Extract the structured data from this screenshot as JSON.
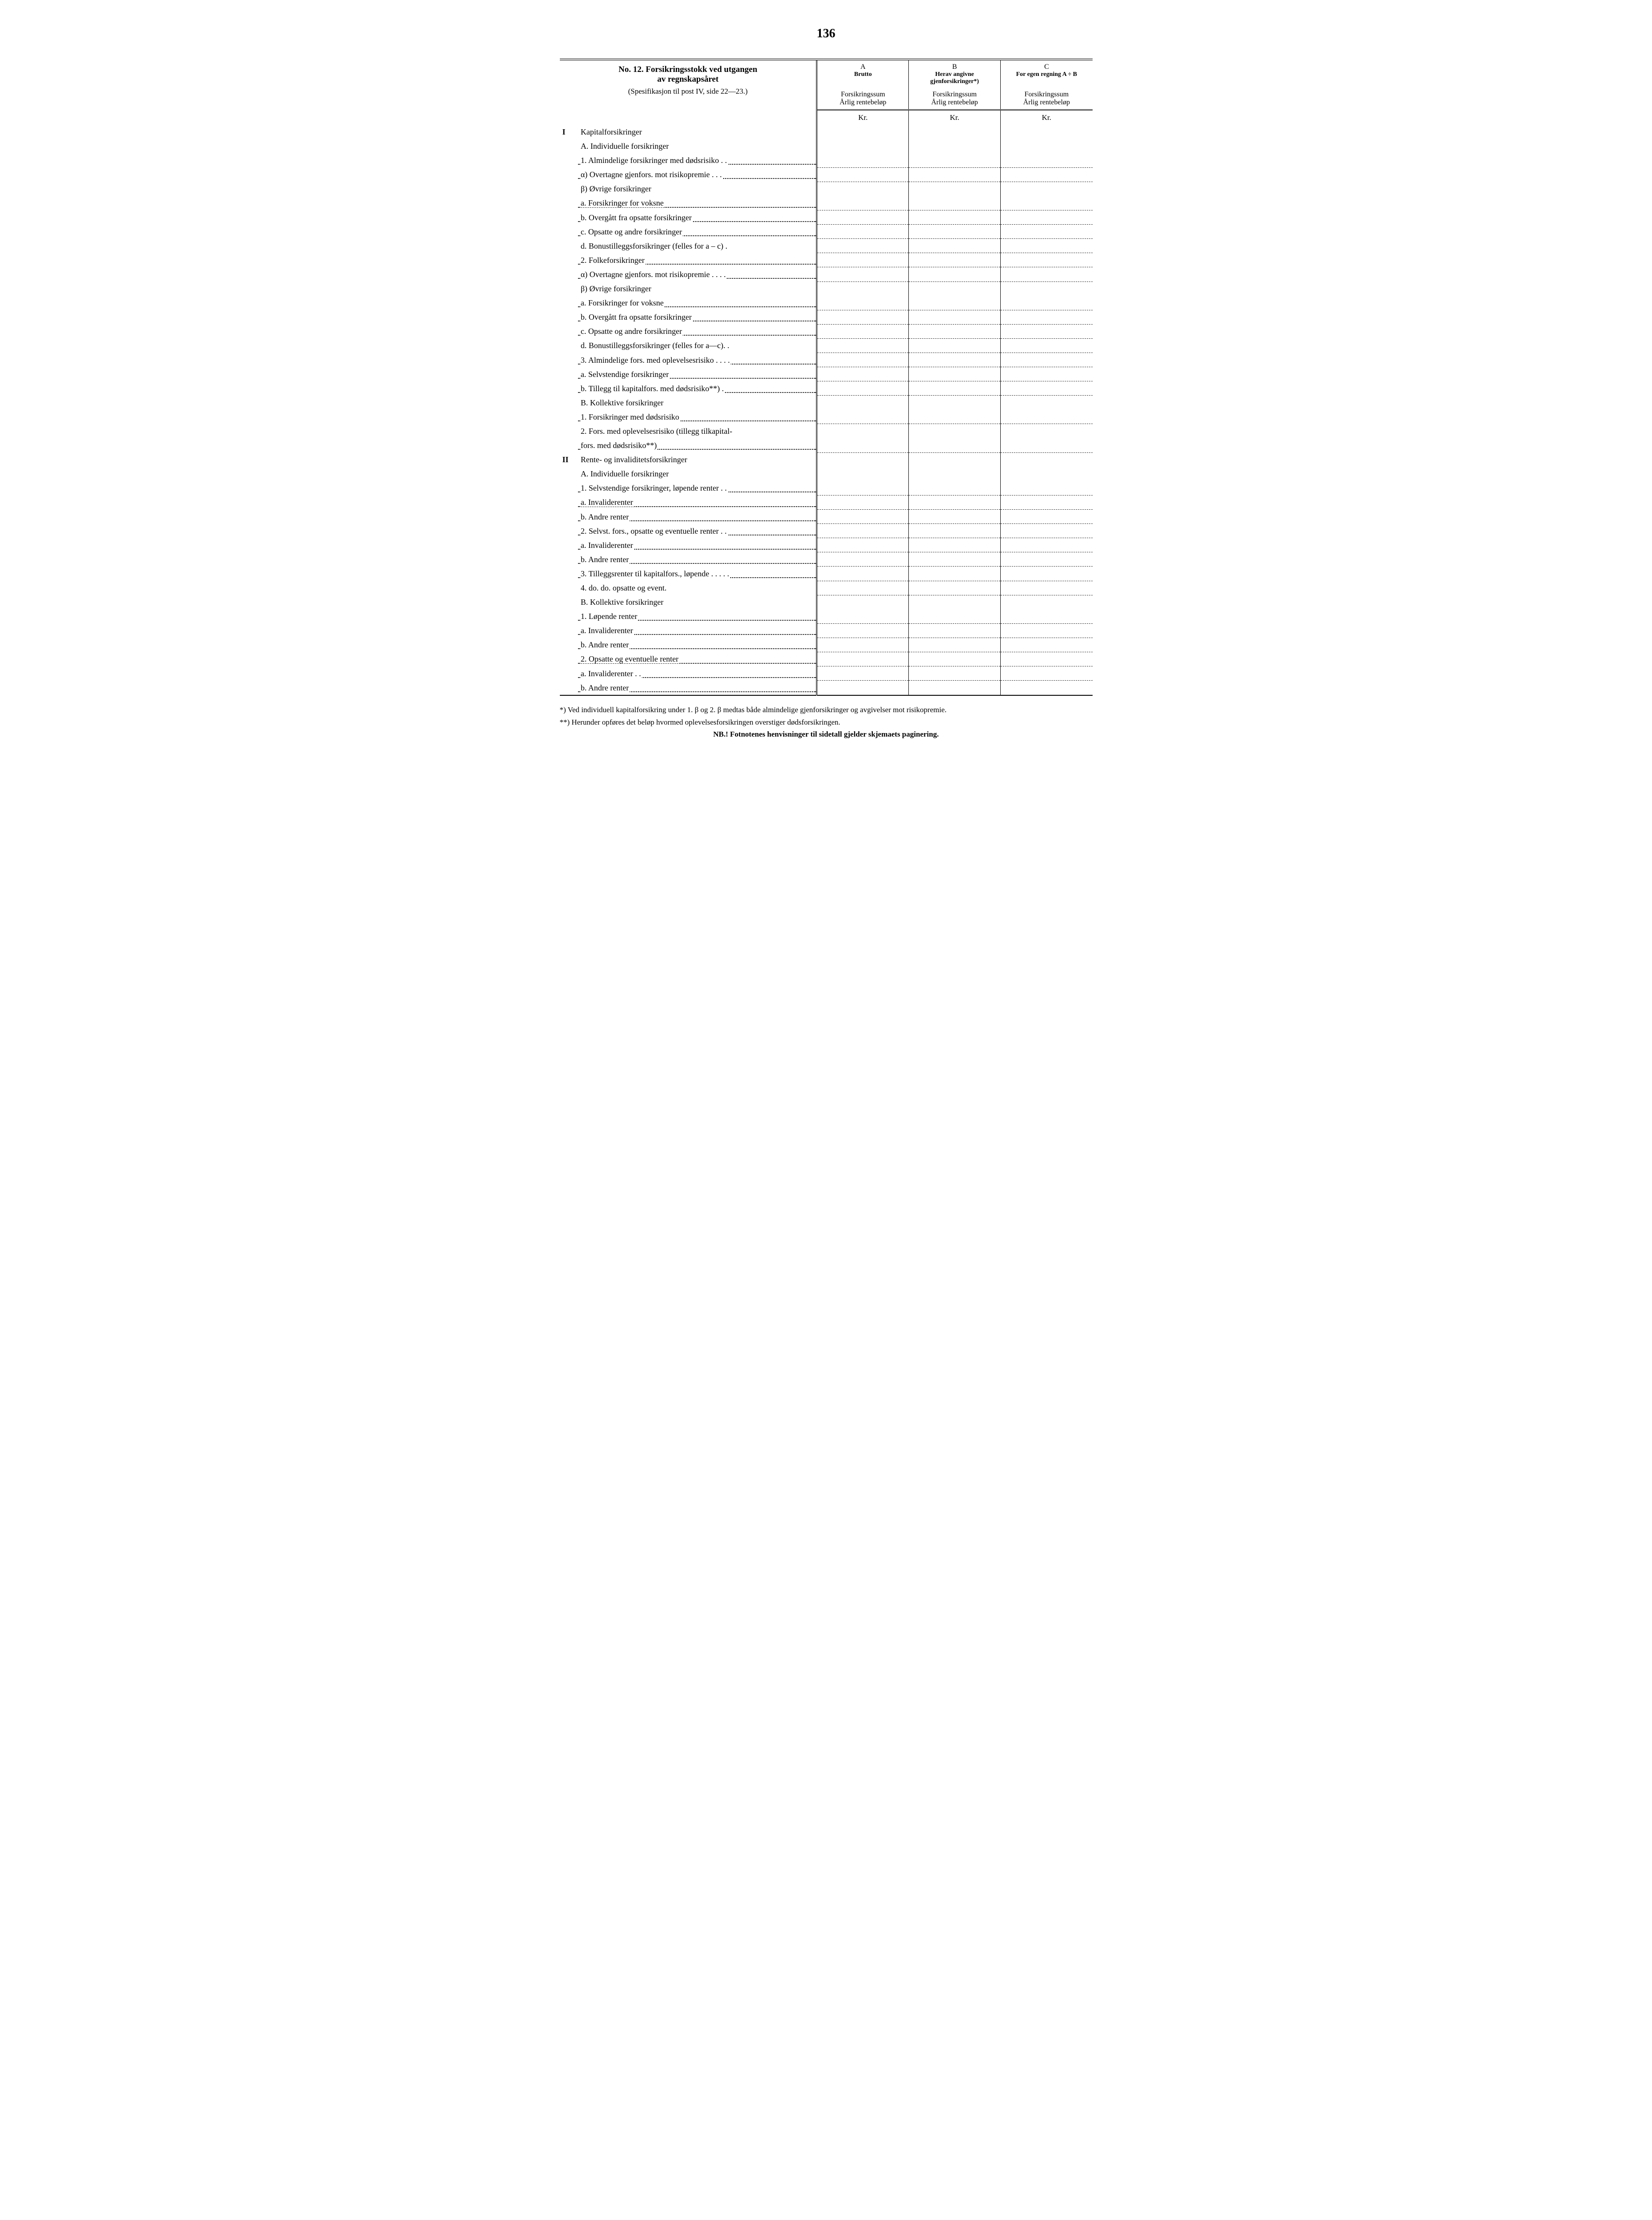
{
  "page_number": "136",
  "header": {
    "title_line1": "No. 12.  Forsikringsstokk ved utgangen",
    "title_line2": "av regnskapsåret",
    "subtitle": "(Spesifikasjon til post IV, side 22—23.)",
    "colA_letter": "A",
    "colA_label": "Brutto",
    "colB_letter": "B",
    "colB_label": "Herav angivne gjenforsikringer*)",
    "colC_letter": "C",
    "colC_label": "For egen regning A ÷ B",
    "sub_line1": "Forsikringssum",
    "sub_line2": "Årlig rentebeløp",
    "kr": "Kr."
  },
  "rows": [
    {
      "roman": "I",
      "indent": 0,
      "text": "Kapitalforsikringer",
      "leader": false,
      "dash": false
    },
    {
      "roman": "",
      "indent": 1,
      "text": "A. Individuelle forsikringer",
      "leader": false,
      "dash": false
    },
    {
      "roman": "",
      "indent": 2,
      "text": "1. Almindelige forsikringer med dødsrisiko . .",
      "leader": true,
      "dash": true
    },
    {
      "roman": "",
      "indent": 3,
      "text": "α) Overtagne gjenfors. mot risikopremie . . .",
      "leader": true,
      "dash": true
    },
    {
      "roman": "",
      "indent": 3,
      "text": "β) Øvrige forsikringer",
      "leader": false,
      "dash": false
    },
    {
      "roman": "",
      "indent": 3,
      "text": "a. Forsikringer for voksne",
      "leader": true,
      "dash": true
    },
    {
      "roman": "",
      "indent": 3,
      "text": "b. Overgått fra opsatte forsikringer",
      "leader": true,
      "dash": true
    },
    {
      "roman": "",
      "indent": 3,
      "text": "c. Opsatte og andre forsikringer",
      "leader": true,
      "dash": true
    },
    {
      "roman": "",
      "indent": 3,
      "text": "d. Bonustilleggsforsikringer (felles for a – c) .",
      "leader": false,
      "dash": true
    },
    {
      "roman": "",
      "indent": 2,
      "text": "2. Folkeforsikringer",
      "leader": true,
      "dash": true
    },
    {
      "roman": "",
      "indent": 3,
      "text": "α) Overtagne gjenfors. mot risikopremie . . . .",
      "leader": true,
      "dash": true
    },
    {
      "roman": "",
      "indent": 3,
      "text": "β) Øvrige forsikringer",
      "leader": false,
      "dash": false
    },
    {
      "roman": "",
      "indent": 3,
      "text": "a. Forsikringer for voksne",
      "leader": true,
      "dash": true
    },
    {
      "roman": "",
      "indent": 3,
      "text": "b. Overgått fra opsatte forsikringer",
      "leader": true,
      "dash": true
    },
    {
      "roman": "",
      "indent": 3,
      "text": "c. Opsatte og andre forsikringer",
      "leader": true,
      "dash": true
    },
    {
      "roman": "",
      "indent": 3,
      "text": "d. Bonustilleggsforsikringer (felles for a—c). .",
      "leader": false,
      "dash": true
    },
    {
      "roman": "",
      "indent": 2,
      "text": "3. Almindelige fors. med oplevelsesrisiko . .  . .",
      "leader": true,
      "dash": true
    },
    {
      "roman": "",
      "indent": 3,
      "text": "a. Selvstendige forsikringer",
      "leader": true,
      "dash": true
    },
    {
      "roman": "",
      "indent": 3,
      "text": "b. Tillegg til kapitalfors. med dødsrisiko**) .",
      "leader": true,
      "dash": true
    },
    {
      "roman": "",
      "indent": 1,
      "text": "B. Kollektive forsikringer",
      "leader": false,
      "dash": false
    },
    {
      "roman": "",
      "indent": 2,
      "text": "1. Forsikringer med dødsrisiko",
      "leader": true,
      "dash": true
    },
    {
      "roman": "",
      "indent": 2,
      "text": "2. Fors. med oplevelsesrisiko (tillegg tilkapital-",
      "leader": false,
      "dash": false
    },
    {
      "roman": "",
      "indent": 3,
      "text": "fors. med dødsrisiko**)",
      "leader": true,
      "dash": true
    },
    {
      "roman": "II",
      "indent": 0,
      "text": "Rente- og invaliditetsforsikringer",
      "leader": false,
      "dash": false
    },
    {
      "roman": "",
      "indent": 1,
      "text": "A. Individuelle forsikringer",
      "leader": false,
      "dash": false
    },
    {
      "roman": "",
      "indent": 2,
      "text": "1. Selvstendige forsikringer, løpende renter . .",
      "leader": true,
      "dash": true
    },
    {
      "roman": "",
      "indent": 3,
      "text": "a. Invaliderenter",
      "leader": true,
      "dash": true
    },
    {
      "roman": "",
      "indent": 3,
      "text": "b. Andre renter",
      "leader": true,
      "dash": true
    },
    {
      "roman": "",
      "indent": 2,
      "text": "2. Selvst. fors., opsatte og eventuelle renter . .",
      "leader": true,
      "dash": true
    },
    {
      "roman": "",
      "indent": 3,
      "text": "a. Invaliderenter",
      "leader": true,
      "dash": true
    },
    {
      "roman": "",
      "indent": 3,
      "text": "b. Andre renter",
      "leader": true,
      "dash": true
    },
    {
      "roman": "",
      "indent": 2,
      "text": "3. Tilleggsrenter til kapitalfors., løpende . . . . .",
      "leader": true,
      "dash": true
    },
    {
      "roman": "",
      "indent": 2,
      "text": "4.        do.                 do.     opsatte og event.",
      "leader": false,
      "dash": true
    },
    {
      "roman": "",
      "indent": 1,
      "text": "B. Kollektive forsikringer",
      "leader": false,
      "dash": false
    },
    {
      "roman": "",
      "indent": 2,
      "text": "1. Løpende renter",
      "leader": true,
      "dash": true
    },
    {
      "roman": "",
      "indent": 3,
      "text": "a. Invaliderenter",
      "leader": true,
      "dash": true
    },
    {
      "roman": "",
      "indent": 3,
      "text": "b. Andre renter",
      "leader": true,
      "dash": true
    },
    {
      "roman": "",
      "indent": 2,
      "text": "2. Opsatte og eventuelle renter",
      "leader": true,
      "dash": true
    },
    {
      "roman": "",
      "indent": 3,
      "text": "a. Invaliderenter . .",
      "leader": true,
      "dash": true
    },
    {
      "roman": "",
      "indent": 3,
      "text": "b. Andre renter",
      "leader": true,
      "dash": true
    }
  ],
  "footnotes": {
    "f1": "*) Ved individuell kapitalforsikring under 1. β og 2. β medtas både almindelige gjenforsikringer og avgivelser mot risikopremie.",
    "f2": "**) Herunder opføres det beløp hvormed oplevelsesforsikringen overstiger dødsforsikringen.",
    "nb": "NB.!  Fotnotenes henvisninger til sidetall gjelder skjemaets paginering."
  }
}
